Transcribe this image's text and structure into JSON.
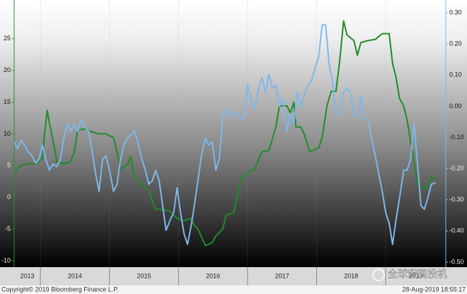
{
  "chart_data": {
    "type": "line",
    "xlim": [
      2013.62,
      2019.87
    ],
    "xticks": [
      2014,
      2015,
      2016,
      2017,
      2018,
      2019
    ],
    "xlabels": [
      {
        "value": 2013.81,
        "label": "2013"
      },
      {
        "value": 2014.5,
        "label": "2014"
      },
      {
        "value": 2015.5,
        "label": "2015"
      },
      {
        "value": 2016.5,
        "label": "2016"
      },
      {
        "value": 2017.5,
        "label": "2017"
      },
      {
        "value": 2018.5,
        "label": "2018"
      },
      {
        "value": 2019.44,
        "label": "2019"
      }
    ],
    "ylim": [
      -11,
      31.1
    ],
    "yticks": [
      -10,
      -5,
      0,
      5,
      10,
      15,
      20,
      25
    ],
    "y2lim": [
      -0.516,
      0.341
    ],
    "y2ticks": [
      {
        "value": 0.3,
        "label": "0.30"
      },
      {
        "value": 0.2,
        "label": "0.20"
      },
      {
        "value": 0.1,
        "label": "0.10"
      },
      {
        "value": 0,
        "label": "0.00"
      },
      {
        "value": -0.1,
        "label": "-0.10"
      },
      {
        "value": -0.2,
        "label": "-0.20"
      },
      {
        "value": -0.3,
        "label": "-0.30"
      },
      {
        "value": -0.4,
        "label": "-0.40"
      },
      {
        "value": -0.5,
        "label": "-0.50"
      }
    ],
    "series": [
      {
        "color": "#1e8c28",
        "x": [
          2013.62,
          2013.72,
          2013.83,
          2013.93,
          2014.03,
          2014.06,
          2014.1,
          2014.13,
          2014.18,
          2014.24,
          2014.34,
          2014.44,
          2014.49,
          2014.54,
          2014.65,
          2014.75,
          2014.85,
          2014.95,
          2015.06,
          2015.11,
          2015.16,
          2015.26,
          2015.31,
          2015.36,
          2015.47,
          2015.57,
          2015.62,
          2015.67,
          2015.77,
          2015.88,
          2015.98,
          2016.08,
          2016.18,
          2016.23,
          2016.28,
          2016.39,
          2016.49,
          2016.54,
          2016.64,
          2016.69,
          2016.8,
          2016.85,
          2016.9,
          2017.0,
          2017.1,
          2017.21,
          2017.31,
          2017.41,
          2017.46,
          2017.57,
          2017.62,
          2017.67,
          2017.7,
          2017.77,
          2017.82,
          2017.9,
          2018.03,
          2018.08,
          2018.15,
          2018.21,
          2018.28,
          2018.33,
          2018.39,
          2018.44,
          2018.54,
          2018.59,
          2018.64,
          2018.74,
          2018.85,
          2018.95,
          2019.05,
          2019.1,
          2019.15,
          2019.2,
          2019.26,
          2019.31,
          2019.36,
          2019.41,
          2019.46,
          2019.56,
          2019.61,
          2019.66,
          2019.72
        ],
        "values": [
          4.1,
          5.0,
          5.3,
          5.3,
          6.1,
          10.0,
          13.7,
          11.7,
          9.1,
          5.6,
          5.3,
          5.6,
          7.2,
          10.6,
          10.8,
          10.3,
          10.0,
          10.0,
          9.4,
          7.2,
          4.4,
          5.2,
          6.4,
          3.3,
          2.0,
          1.1,
          -0.6,
          -1.9,
          -1.9,
          -2.2,
          -3.3,
          -3.7,
          -3.3,
          -4.4,
          -5.0,
          -7.6,
          -7.1,
          -6.1,
          -5.0,
          -2.8,
          -2.4,
          0.2,
          2.8,
          3.9,
          4.4,
          7.2,
          7.4,
          11.1,
          14.4,
          14.4,
          13.3,
          15.0,
          11.1,
          11.1,
          10.0,
          7.2,
          7.8,
          9.4,
          14.4,
          16.7,
          16.7,
          21.1,
          27.8,
          25.6,
          24.7,
          22.4,
          24.4,
          24.7,
          24.9,
          25.8,
          25.8,
          21.1,
          18.9,
          15.6,
          14.4,
          12.2,
          8.9,
          5.6,
          2.2,
          1.3,
          1.7,
          3.3,
          2.8
        ]
      },
      {
        "color": "#7db8ec",
        "axis": "y2",
        "x": [
          2013.62,
          2013.67,
          2013.72,
          2013.77,
          2013.83,
          2013.88,
          2013.93,
          2013.98,
          2014.03,
          2014.08,
          2014.13,
          2014.18,
          2014.24,
          2014.29,
          2014.34,
          2014.39,
          2014.44,
          2014.49,
          2014.54,
          2014.59,
          2014.65,
          2014.7,
          2014.75,
          2014.8,
          2014.85,
          2014.9,
          2014.95,
          2015.0,
          2015.06,
          2015.11,
          2015.16,
          2015.21,
          2015.26,
          2015.31,
          2015.36,
          2015.41,
          2015.47,
          2015.52,
          2015.57,
          2015.62,
          2015.67,
          2015.72,
          2015.77,
          2015.82,
          2015.88,
          2015.93,
          2015.98,
          2016.03,
          2016.08,
          2016.13,
          2016.18,
          2016.23,
          2016.28,
          2016.34,
          2016.39,
          2016.44,
          2016.49,
          2016.54,
          2016.59,
          2016.64,
          2016.69,
          2016.75,
          2016.8,
          2016.85,
          2016.9,
          2016.95,
          2017.0,
          2017.05,
          2017.1,
          2017.16,
          2017.21,
          2017.26,
          2017.31,
          2017.36,
          2017.41,
          2017.46,
          2017.51,
          2017.57,
          2017.62,
          2017.67,
          2017.72,
          2017.77,
          2017.82,
          2017.87,
          2017.92,
          2017.98,
          2018.03,
          2018.08,
          2018.13,
          2018.18,
          2018.23,
          2018.28,
          2018.33,
          2018.39,
          2018.44,
          2018.49,
          2018.54,
          2018.59,
          2018.64,
          2018.69,
          2018.74,
          2018.85,
          2018.95,
          2019.0,
          2019.05,
          2019.1,
          2019.15,
          2019.2,
          2019.26,
          2019.31,
          2019.36,
          2019.41,
          2019.46,
          2019.51,
          2019.56,
          2019.61,
          2019.66,
          2019.72
        ],
        "values": [
          -0.114,
          -0.136,
          -0.109,
          -0.125,
          -0.148,
          -0.159,
          -0.182,
          -0.17,
          -0.125,
          -0.17,
          -0.205,
          -0.186,
          -0.193,
          -0.17,
          -0.102,
          -0.057,
          -0.08,
          -0.057,
          -0.08,
          -0.045,
          -0.068,
          -0.08,
          -0.148,
          -0.216,
          -0.273,
          -0.17,
          -0.159,
          -0.205,
          -0.273,
          -0.25,
          -0.17,
          -0.125,
          -0.102,
          -0.091,
          -0.08,
          -0.114,
          -0.17,
          -0.205,
          -0.25,
          -0.239,
          -0.205,
          -0.239,
          -0.318,
          -0.398,
          -0.364,
          -0.341,
          -0.261,
          -0.341,
          -0.409,
          -0.443,
          -0.386,
          -0.318,
          -0.239,
          -0.148,
          -0.102,
          -0.125,
          -0.114,
          -0.205,
          -0.17,
          -0.034,
          -0.011,
          -0.034,
          -0.023,
          -0.023,
          -0.045,
          -0.034,
          0.068,
          0.023,
          -0.011,
          0.057,
          0.091,
          0.045,
          0.102,
          0.057,
          0.068,
          0.0,
          0.023,
          -0.08,
          -0.023,
          -0.057,
          0.045,
          0.0,
          0.034,
          0.068,
          0.08,
          0.125,
          0.159,
          0.261,
          0.261,
          0.136,
          0.08,
          -0.023,
          -0.023,
          0.045,
          0.057,
          0.045,
          -0.034,
          -0.034,
          0.034,
          -0.034,
          -0.045,
          -0.159,
          -0.273,
          -0.341,
          -0.375,
          -0.443,
          -0.364,
          -0.295,
          -0.205,
          -0.205,
          -0.17,
          -0.057,
          -0.182,
          -0.318,
          -0.33,
          -0.295,
          -0.25,
          -0.245
        ]
      }
    ],
    "copyright": "Copyright© 2019 Bloomberg Finance L.P.",
    "timestamp": "28-Aug-2019 18:55:17",
    "watermark": "全球宏观投机"
  }
}
